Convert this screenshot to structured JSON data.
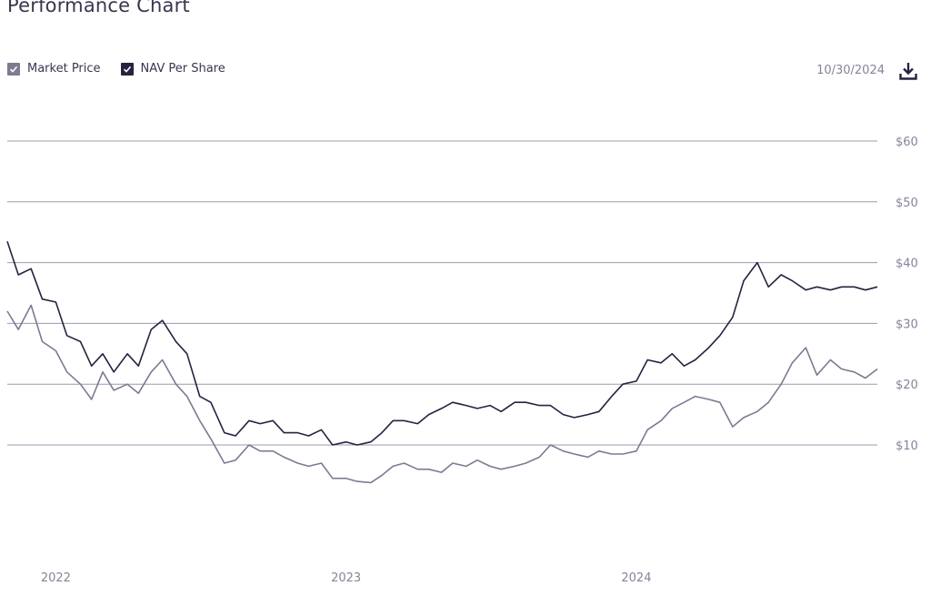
{
  "header": {
    "title": "Performance Chart",
    "date": "10/30/2024"
  },
  "legend": [
    {
      "label": "Market Price",
      "checked": true,
      "color": "#7d7a92"
    },
    {
      "label": "NAV Per Share",
      "checked": true,
      "color": "#272240"
    }
  ],
  "icons": {
    "download": "download-icon",
    "checkbox": "check-icon"
  },
  "chart_data": {
    "type": "line",
    "title": "Performance Chart",
    "xlabel": "",
    "ylabel": "",
    "x_ticks": [
      "2022",
      "2023",
      "2024"
    ],
    "y_ticks": [
      "$10",
      "$20",
      "$30",
      "$40",
      "$50",
      "$60"
    ],
    "y_tick_values": [
      10,
      20,
      30,
      40,
      50,
      60
    ],
    "ylim": [
      -9,
      60
    ],
    "xlim": [
      "2021-11-01",
      "2024-10-30"
    ],
    "grid": true,
    "legend_position": "top-left",
    "series": [
      {
        "name": "NAV Per Share",
        "color": "#272240",
        "x": [
          "2021-11-01",
          "2021-11-15",
          "2021-12-01",
          "2021-12-15",
          "2022-01-01",
          "2022-01-15",
          "2022-02-01",
          "2022-02-15",
          "2022-03-01",
          "2022-03-15",
          "2022-04-01",
          "2022-04-15",
          "2022-05-01",
          "2022-05-15",
          "2022-06-01",
          "2022-06-15",
          "2022-07-01",
          "2022-07-15",
          "2022-08-01",
          "2022-08-15",
          "2022-09-01",
          "2022-09-15",
          "2022-10-01",
          "2022-10-15",
          "2022-11-01",
          "2022-11-15",
          "2022-12-01",
          "2022-12-15",
          "2023-01-01",
          "2023-01-15",
          "2023-02-01",
          "2023-02-15",
          "2023-03-01",
          "2023-03-15",
          "2023-04-01",
          "2023-04-15",
          "2023-05-01",
          "2023-05-15",
          "2023-06-01",
          "2023-06-15",
          "2023-07-01",
          "2023-07-15",
          "2023-08-01",
          "2023-08-15",
          "2023-09-01",
          "2023-09-15",
          "2023-10-01",
          "2023-10-15",
          "2023-11-01",
          "2023-11-15",
          "2023-12-01",
          "2023-12-15",
          "2024-01-01",
          "2024-01-15",
          "2024-02-01",
          "2024-02-15",
          "2024-03-01",
          "2024-03-15",
          "2024-04-01",
          "2024-04-15",
          "2024-05-01",
          "2024-05-15",
          "2024-06-01",
          "2024-06-15",
          "2024-07-01",
          "2024-07-15",
          "2024-08-01",
          "2024-08-15",
          "2024-09-01",
          "2024-09-15",
          "2024-10-01",
          "2024-10-15",
          "2024-10-30"
        ],
        "values": [
          43.5,
          38,
          39,
          34,
          33.5,
          28,
          27,
          23,
          25,
          22,
          25,
          23,
          29,
          30.5,
          27,
          25,
          18,
          17,
          12,
          11.5,
          14,
          13.5,
          14,
          12,
          12,
          11.5,
          12.5,
          10,
          10.5,
          10,
          10.5,
          12,
          14,
          14,
          13.5,
          15,
          16,
          17,
          16.5,
          16,
          16.5,
          15.5,
          17,
          17,
          16.5,
          16.5,
          15,
          14.5,
          15,
          15.5,
          18,
          20,
          20.5,
          24,
          23.5,
          25,
          23,
          24,
          26,
          28,
          31,
          37,
          40,
          36,
          38,
          37,
          35.5,
          36,
          35.5,
          36,
          36,
          35.5,
          36
        ]
      },
      {
        "name": "Market Price",
        "color": "#7d7a92",
        "x": [
          "2021-11-01",
          "2021-11-15",
          "2021-12-01",
          "2021-12-15",
          "2022-01-01",
          "2022-01-15",
          "2022-02-01",
          "2022-02-15",
          "2022-03-01",
          "2022-03-15",
          "2022-04-01",
          "2022-04-15",
          "2022-05-01",
          "2022-05-15",
          "2022-06-01",
          "2022-06-15",
          "2022-07-01",
          "2022-07-15",
          "2022-08-01",
          "2022-08-15",
          "2022-09-01",
          "2022-09-15",
          "2022-10-01",
          "2022-10-15",
          "2022-11-01",
          "2022-11-15",
          "2022-12-01",
          "2022-12-15",
          "2023-01-01",
          "2023-01-15",
          "2023-02-01",
          "2023-02-15",
          "2023-03-01",
          "2023-03-15",
          "2023-04-01",
          "2023-04-15",
          "2023-05-01",
          "2023-05-15",
          "2023-06-01",
          "2023-06-15",
          "2023-07-01",
          "2023-07-15",
          "2023-08-01",
          "2023-08-15",
          "2023-09-01",
          "2023-09-15",
          "2023-10-01",
          "2023-10-15",
          "2023-11-01",
          "2023-11-15",
          "2023-12-01",
          "2023-12-15",
          "2024-01-01",
          "2024-01-15",
          "2024-02-01",
          "2024-02-15",
          "2024-03-01",
          "2024-03-15",
          "2024-04-01",
          "2024-04-15",
          "2024-05-01",
          "2024-05-15",
          "2024-06-01",
          "2024-06-15",
          "2024-07-01",
          "2024-07-15",
          "2024-08-01",
          "2024-08-15",
          "2024-09-01",
          "2024-09-15",
          "2024-10-01",
          "2024-10-15",
          "2024-10-30"
        ],
        "values": [
          32,
          29,
          33,
          27,
          25.5,
          22,
          20,
          17.5,
          22,
          19,
          20,
          18.5,
          22,
          24,
          20,
          18,
          14,
          11,
          7,
          7.5,
          10,
          9,
          9,
          8,
          7,
          6.5,
          7,
          4.5,
          4.5,
          4,
          3.8,
          5,
          6.5,
          7,
          6,
          6,
          5.5,
          7,
          6.5,
          7.5,
          6.5,
          6,
          6.5,
          7,
          8,
          10,
          9,
          8.5,
          8,
          9,
          8.5,
          8.5,
          9,
          12.5,
          14,
          16,
          17,
          18,
          17.5,
          17,
          13,
          14.5,
          15.5,
          17,
          20,
          23.5,
          26,
          21.5,
          24,
          22.5,
          22,
          21,
          22.5
        ]
      }
    ]
  }
}
